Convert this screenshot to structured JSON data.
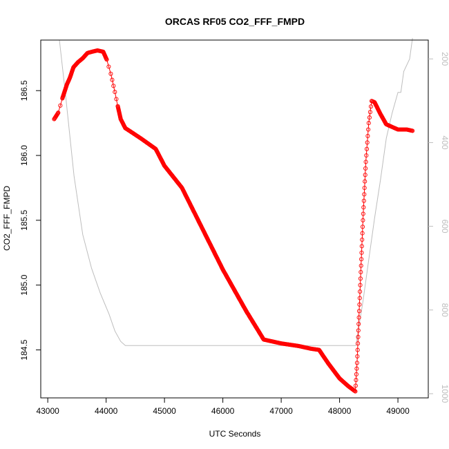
{
  "chart_data": {
    "type": "line",
    "title": "ORCAS RF05 CO2_FFF_FMPD",
    "xlabel": "UTC Seconds",
    "ylabel": "CO2_FFF_FMPD",
    "xlim": [
      42880,
      49520
    ],
    "ylim": [
      184.13,
      186.89
    ],
    "x_ticks": [
      43000,
      44000,
      45000,
      46000,
      47000,
      48000,
      49000
    ],
    "y_ticks": [
      184.5,
      185.0,
      185.5,
      186.0,
      186.5
    ],
    "y_tick_labels": [
      "184.5",
      "185.0",
      "185.5",
      "186.0",
      "186.5"
    ],
    "y2_ticks": [
      200,
      400,
      600,
      800,
      1000
    ],
    "y2lim": [
      1010,
      155
    ],
    "grid": false,
    "legend": "none",
    "colors": {
      "co2": "#ff0000",
      "pressure": "#bdbdbd",
      "axes": "#000000"
    },
    "series": [
      {
        "axis": "left",
        "marker": "open-circle",
        "x": [
          43110,
          43180,
          43250,
          43330,
          43380,
          43440,
          43520,
          43600,
          43680,
          43760,
          43850,
          43950,
          44010,
          44080,
          44150,
          44200,
          44250,
          44330,
          44400,
          44600,
          44850,
          45000,
          45300,
          45600,
          46000,
          46400,
          46700,
          47000,
          47300,
          47500,
          47650,
          47800,
          48000,
          48150,
          48270,
          48300,
          48350,
          48400,
          48450,
          48500,
          48550,
          48600,
          48700,
          48800,
          49000,
          49150,
          49250
        ],
        "values": [
          186.28,
          186.33,
          186.44,
          186.55,
          186.6,
          186.68,
          186.72,
          186.75,
          186.79,
          186.8,
          186.81,
          186.8,
          186.74,
          186.63,
          186.49,
          186.38,
          186.28,
          186.21,
          186.19,
          186.13,
          186.05,
          185.92,
          185.75,
          185.48,
          185.12,
          184.8,
          184.58,
          184.55,
          184.53,
          184.51,
          184.5,
          184.4,
          184.28,
          184.22,
          184.18,
          184.4,
          184.95,
          185.5,
          185.95,
          186.25,
          186.42,
          186.41,
          186.32,
          186.24,
          186.2,
          186.2,
          186.19
        ]
      },
      {
        "axis": "right",
        "marker": "line",
        "x": [
          43200,
          43300,
          43450,
          43600,
          43750,
          43900,
          44050,
          44150,
          44250,
          44330,
          45000,
          46000,
          47000,
          48000,
          48280,
          48400,
          48500,
          48600,
          48700,
          48800,
          48900,
          49000,
          49050,
          49100,
          49200,
          49250
        ],
        "values": [
          155,
          280,
          480,
          620,
          700,
          760,
          810,
          850,
          875,
          885,
          885,
          885,
          885,
          885,
          885,
          780,
          680,
          580,
          490,
          390,
          330,
          280,
          280,
          230,
          200,
          150
        ]
      }
    ]
  }
}
